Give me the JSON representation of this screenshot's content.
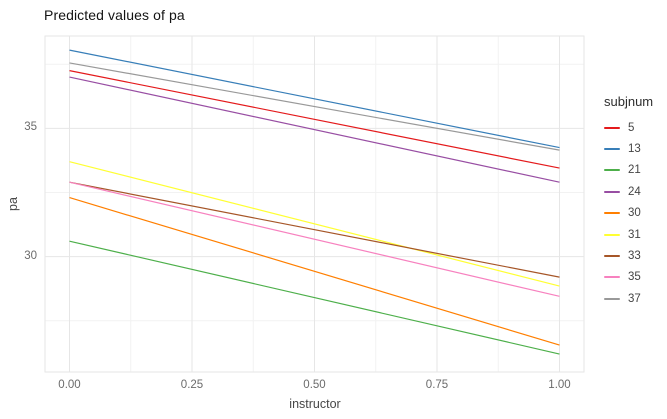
{
  "title": "Predicted values of pa",
  "axes": {
    "x_label": "instructor",
    "y_label": "pa",
    "x_ticks": [
      "0.00",
      "0.25",
      "0.50",
      "0.75",
      "1.00"
    ],
    "y_ticks": [
      "30",
      "35"
    ]
  },
  "legend": {
    "title": "subjnum",
    "entries": [
      "5",
      "13",
      "21",
      "24",
      "30",
      "31",
      "33",
      "35",
      "37"
    ]
  },
  "chart_data": {
    "type": "line",
    "title": "Predicted values of pa",
    "xlabel": "instructor",
    "ylabel": "pa",
    "xlim": [
      -0.05,
      1.05
    ],
    "ylim": [
      25.5,
      38.6
    ],
    "x": [
      0,
      1
    ],
    "x_major": [
      0,
      0.25,
      0.5,
      0.75,
      1.0
    ],
    "x_minor": [
      0.125,
      0.375,
      0.625,
      0.875
    ],
    "y_major": [
      30,
      35
    ],
    "y_minor": [
      27.5,
      32.5,
      37.5
    ],
    "grid": true,
    "legend_position": "right",
    "legend_title": "subjnum",
    "series": [
      {
        "name": "5",
        "color": "#E41A1C",
        "values": [
          37.25,
          33.45
        ]
      },
      {
        "name": "13",
        "color": "#377EB8",
        "values": [
          38.05,
          34.25
        ]
      },
      {
        "name": "21",
        "color": "#4DAF4A",
        "values": [
          30.6,
          26.2
        ]
      },
      {
        "name": "24",
        "color": "#984EA3",
        "values": [
          37.0,
          32.9
        ]
      },
      {
        "name": "30",
        "color": "#FF7F00",
        "values": [
          32.3,
          26.55
        ]
      },
      {
        "name": "31",
        "color": "#FFFF33",
        "values": [
          33.7,
          28.85
        ]
      },
      {
        "name": "33",
        "color": "#A65628",
        "values": [
          32.9,
          29.2
        ]
      },
      {
        "name": "35",
        "color": "#F781BF",
        "values": [
          32.9,
          28.45
        ]
      },
      {
        "name": "37",
        "color": "#999999",
        "values": [
          37.55,
          34.15
        ]
      }
    ]
  },
  "colors": {
    "background": "#ffffff",
    "grid_major": "#e6e6e6",
    "grid_minor": "#f2f2f2",
    "panel_border": "#e6e6e6",
    "tick_text": "#6b6b6b",
    "axis_title_text": "#474747",
    "title_text": "#141414"
  }
}
